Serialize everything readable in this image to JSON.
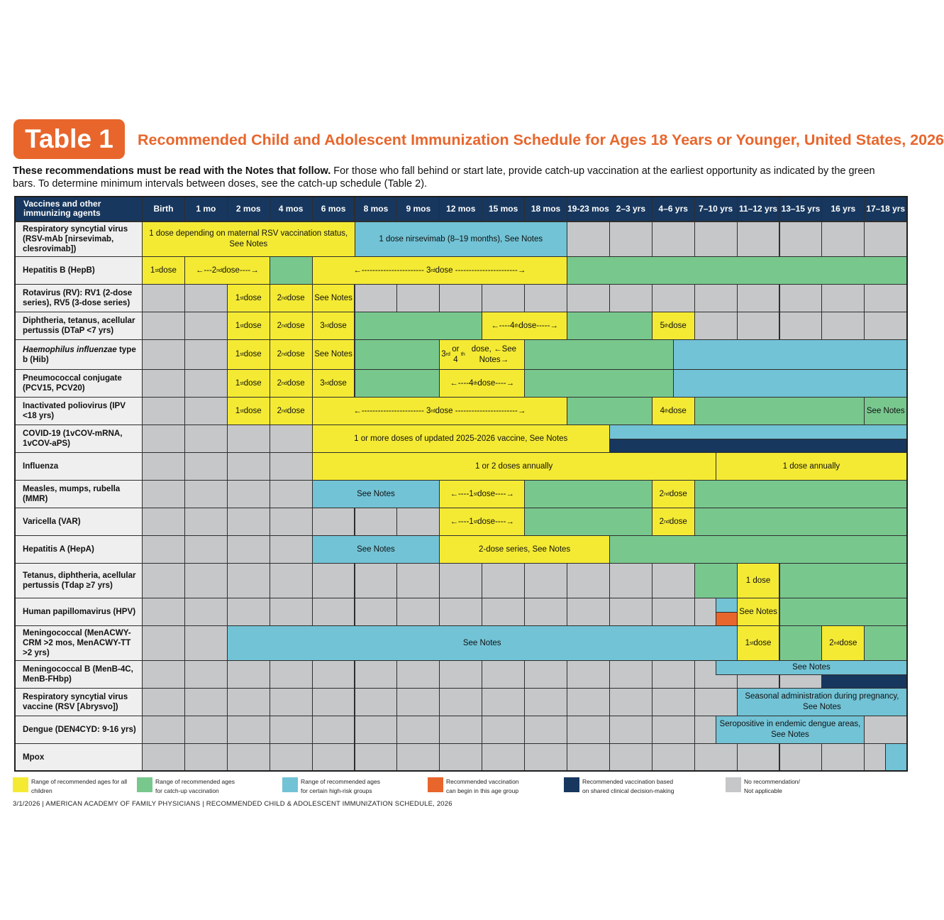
{
  "header": {
    "badge": "Table 1",
    "title": "Recommended Child and Adolescent Immunization Schedule for Ages 18 Years or Younger, United States, 2026"
  },
  "intro": {
    "bold": "These recommendations must be read with the Notes that follow.",
    "text": " For those who fall behind or start late, provide catch-up vaccination at the earliest opportunity as indicated by the green bars. To determine minimum intervals between doses, see the catch-up schedule (Table 2)."
  },
  "colors": {
    "yellow": "#f4ea34",
    "green": "#78c88e",
    "blue": "#72c3d6",
    "orange": "#e8662c",
    "navy": "#17375e",
    "gray": "#c6c7c9"
  },
  "table": {
    "corner_label": "Vaccines and other immunizing agents",
    "columns": [
      "Birth",
      "1 mo",
      "2 mos",
      "4 mos",
      "6 mos",
      "8 mos",
      "9 mos",
      "12 mos",
      "15 mos",
      "18 mos",
      "19-23 mos",
      "2–3 yrs",
      "4–6 yrs",
      "7–10 yrs",
      "11–12 yrs",
      "13–15 yrs",
      "16 yrs",
      "17–18 yrs"
    ],
    "rows": [
      {
        "name": "Respiratory syncytial virus (RSV-mAb [nirsevimab, clesrovimab])",
        "bars": [
          {
            "from": 0,
            "span": 5,
            "color": "y",
            "label": "1 dose depending on maternal RSV vaccination status, See Notes"
          },
          {
            "from": 5,
            "span": 5,
            "color": "b",
            "label": "1 dose nirsevimab (8–19 months), See Notes"
          }
        ]
      },
      {
        "name": "Hepatitis B (HepB)",
        "bars": [
          {
            "from": 0,
            "span": 1,
            "color": "y",
            "label": "1st dose"
          },
          {
            "from": 1,
            "span": 2,
            "color": "y",
            "label": "←---2nd dose----→"
          },
          {
            "from": 3,
            "span": 1,
            "color": "gr",
            "label": ""
          },
          {
            "from": 4,
            "span": 6,
            "color": "y",
            "label": "←----------------------- 3rd dose -----------------------→"
          },
          {
            "from": 10,
            "span": 8,
            "color": "gr",
            "label": ""
          }
        ]
      },
      {
        "name": "Rotavirus (RV): RV1 (2-dose series), RV5 (3-dose series)",
        "bars": [
          {
            "from": 2,
            "span": 1,
            "color": "y",
            "label": "1st dose"
          },
          {
            "from": 3,
            "span": 1,
            "color": "y",
            "label": "2nd dose"
          },
          {
            "from": 4,
            "span": 1,
            "color": "y",
            "label": "See Notes"
          }
        ]
      },
      {
        "name": "Diphtheria, tetanus, acellular pertussis (DTaP <7 yrs)",
        "bars": [
          {
            "from": 2,
            "span": 1,
            "color": "y",
            "label": "1st dose"
          },
          {
            "from": 3,
            "span": 1,
            "color": "y",
            "label": "2nd dose"
          },
          {
            "from": 4,
            "span": 1,
            "color": "y",
            "label": "3rd dose"
          },
          {
            "from": 5,
            "span": 3,
            "color": "gr",
            "label": ""
          },
          {
            "from": 8,
            "span": 2,
            "color": "y",
            "label": "←----4th dose-----→"
          },
          {
            "from": 10,
            "span": 2,
            "color": "gr",
            "label": ""
          },
          {
            "from": 12,
            "span": 1,
            "color": "y",
            "label": "5th dose"
          }
        ]
      },
      {
        "name": "Haemophilus influenzae type b (Hib)",
        "italic": "Haemophilus influenzae",
        "bars": [
          {
            "from": 2,
            "span": 1,
            "color": "y",
            "label": "1st dose"
          },
          {
            "from": 3,
            "span": 1,
            "color": "y",
            "label": "2nd dose"
          },
          {
            "from": 4,
            "span": 1,
            "color": "y",
            "label": "See Notes"
          },
          {
            "from": 5,
            "span": 2,
            "color": "gr",
            "label": ""
          },
          {
            "from": 7,
            "span": 2,
            "color": "y",
            "label": "3rd or 4th dose, ←See Notes→"
          },
          {
            "from": 9,
            "span": 3.5,
            "color": "gr",
            "label": ""
          },
          {
            "from": 12.5,
            "span": 5.5,
            "color": "b",
            "label": ""
          }
        ]
      },
      {
        "name": "Pneumococcal conjugate (PCV15, PCV20)",
        "bars": [
          {
            "from": 2,
            "span": 1,
            "color": "y",
            "label": "1st dose"
          },
          {
            "from": 3,
            "span": 1,
            "color": "y",
            "label": "2nd dose"
          },
          {
            "from": 4,
            "span": 1,
            "color": "y",
            "label": "3rd dose"
          },
          {
            "from": 5,
            "span": 2,
            "color": "gr",
            "label": ""
          },
          {
            "from": 7,
            "span": 2,
            "color": "y",
            "label": "←----4th dose----→"
          },
          {
            "from": 9,
            "span": 3.5,
            "color": "gr",
            "label": ""
          },
          {
            "from": 12.5,
            "span": 5.5,
            "color": "b",
            "label": ""
          }
        ]
      },
      {
        "name": "Inactivated poliovirus (IPV <18 yrs)",
        "bars": [
          {
            "from": 2,
            "span": 1,
            "color": "y",
            "label": "1st dose"
          },
          {
            "from": 3,
            "span": 1,
            "color": "y",
            "label": "2nd dose"
          },
          {
            "from": 4,
            "span": 6,
            "color": "y",
            "label": "←----------------------- 3rd dose -----------------------→"
          },
          {
            "from": 10,
            "span": 2,
            "color": "gr",
            "label": ""
          },
          {
            "from": 12,
            "span": 1,
            "color": "y",
            "label": "4th dose"
          },
          {
            "from": 13,
            "span": 4,
            "color": "gr",
            "label": ""
          },
          {
            "from": 17,
            "span": 1,
            "color": "gr",
            "label": "See Notes"
          }
        ]
      },
      {
        "name": "COVID-19 (1vCOV-mRNA, 1vCOV-aPS)",
        "bars": [
          {
            "from": 4,
            "span": 7,
            "color": "y",
            "label": "1 or more doses of updated 2025-2026 vaccine, See Notes"
          }
        ],
        "split": {
          "from": 11,
          "span": 7,
          "top": "b",
          "bottom": "n"
        }
      },
      {
        "name": "Influenza",
        "bars": [
          {
            "from": 4,
            "span": 9.5,
            "color": "y",
            "label": "1 or 2 doses annually"
          },
          {
            "from": 13.5,
            "span": 4.5,
            "color": "y",
            "label": "1 dose annually"
          }
        ]
      },
      {
        "name": "Measles, mumps, rubella (MMR)",
        "bars": [
          {
            "from": 4,
            "span": 3,
            "color": "b",
            "label": "See Notes"
          },
          {
            "from": 7,
            "span": 2,
            "color": "y",
            "label": "←----1st dose----→"
          },
          {
            "from": 9,
            "span": 3,
            "color": "gr",
            "label": ""
          },
          {
            "from": 12,
            "span": 1,
            "color": "y",
            "label": "2nd dose"
          },
          {
            "from": 13,
            "span": 5,
            "color": "gr",
            "label": ""
          }
        ]
      },
      {
        "name": "Varicella (VAR)",
        "bars": [
          {
            "from": 7,
            "span": 2,
            "color": "y",
            "label": "←----1st dose----→"
          },
          {
            "from": 9,
            "span": 3,
            "color": "gr",
            "label": ""
          },
          {
            "from": 12,
            "span": 1,
            "color": "y",
            "label": "2nd dose"
          },
          {
            "from": 13,
            "span": 5,
            "color": "gr",
            "label": ""
          }
        ]
      },
      {
        "name": "Hepatitis A (HepA)",
        "bars": [
          {
            "from": 4,
            "span": 3,
            "color": "b",
            "label": "See Notes"
          },
          {
            "from": 7,
            "span": 4,
            "color": "y",
            "label": "2-dose series, See Notes"
          },
          {
            "from": 11,
            "span": 7,
            "color": "gr",
            "label": ""
          }
        ]
      },
      {
        "name": "Tetanus, diphtheria, acellular pertussis (Tdap ≥7 yrs)",
        "bars": [
          {
            "from": 13,
            "span": 1,
            "color": "gr",
            "label": ""
          },
          {
            "from": 14,
            "span": 1,
            "color": "y",
            "label": "1 dose"
          },
          {
            "from": 15,
            "span": 3,
            "color": "gr",
            "label": ""
          }
        ]
      },
      {
        "name": "Human papillomavirus (HPV)",
        "bars": [
          {
            "from": 14,
            "span": 1,
            "color": "y",
            "label": "See Notes"
          },
          {
            "from": 15,
            "span": 3,
            "color": "gr",
            "label": ""
          }
        ],
        "small": [
          {
            "from": 13.5,
            "span": 0.5,
            "half": "top",
            "color": "b"
          },
          {
            "from": 13.5,
            "span": 0.5,
            "half": "bottom",
            "color": "o"
          }
        ]
      },
      {
        "name": "Meningococcal (MenACWY-CRM >2 mos, MenACWY-TT >2 yrs)",
        "bars": [
          {
            "from": 2,
            "span": 12,
            "color": "b",
            "label": "See Notes"
          },
          {
            "from": 14,
            "span": 1,
            "color": "y",
            "label": "1st dose"
          },
          {
            "from": 15,
            "span": 1,
            "color": "gr",
            "label": ""
          },
          {
            "from": 16,
            "span": 1,
            "color": "y",
            "label": "2nd dose"
          },
          {
            "from": 17,
            "span": 1,
            "color": "gr",
            "label": ""
          }
        ]
      },
      {
        "name": "Meningococcal B (MenB-4C, MenB-FHbp)",
        "bars": [],
        "halves": [
          {
            "from": 13.5,
            "span": 4.5,
            "half": "top",
            "color": "b",
            "label": "See Notes"
          },
          {
            "from": 16,
            "span": 2,
            "half": "bottom",
            "color": "n",
            "label": ""
          }
        ]
      },
      {
        "name": "Respiratory syncytial virus vaccine (RSV [Abrysvo])",
        "bars": [
          {
            "from": 14,
            "span": 4,
            "color": "b",
            "label": "Seasonal administration during pregnancy, See Notes"
          }
        ]
      },
      {
        "name": "Dengue (DEN4CYD: 9-16 yrs)",
        "bars": [
          {
            "from": 13.5,
            "span": 3.5,
            "color": "b",
            "label": "Seropositive in endemic dengue areas, See Notes"
          }
        ]
      },
      {
        "name": "Mpox",
        "bars": [
          {
            "from": 17.5,
            "span": 0.5,
            "color": "b",
            "label": ""
          }
        ]
      }
    ]
  },
  "legend": [
    {
      "color": "y",
      "line1": "Range of recommended ages for all",
      "line2": "children"
    },
    {
      "color": "gr",
      "line1": "Range of recommended ages",
      "line2": "for catch-up vaccination"
    },
    {
      "color": "b",
      "line1": "Range of recommended ages",
      "line2": "for certain high-risk groups"
    },
    {
      "color": "o",
      "line1": "Recommended vaccination",
      "line2": "can begin in this age group"
    },
    {
      "color": "n",
      "line1": "Recommended vaccination based",
      "line2": "on shared clinical decision-making"
    },
    {
      "color": "g",
      "line1": "No recommendation/",
      "line2": "Not applicable"
    }
  ],
  "footer": "3/1/2026 | AMERICAN ACADEMY OF FAMILY PHYSICIANS | RECOMMENDED CHILD & ADOLESCENT IMMUNIZATION SCHEDULE, 2026"
}
